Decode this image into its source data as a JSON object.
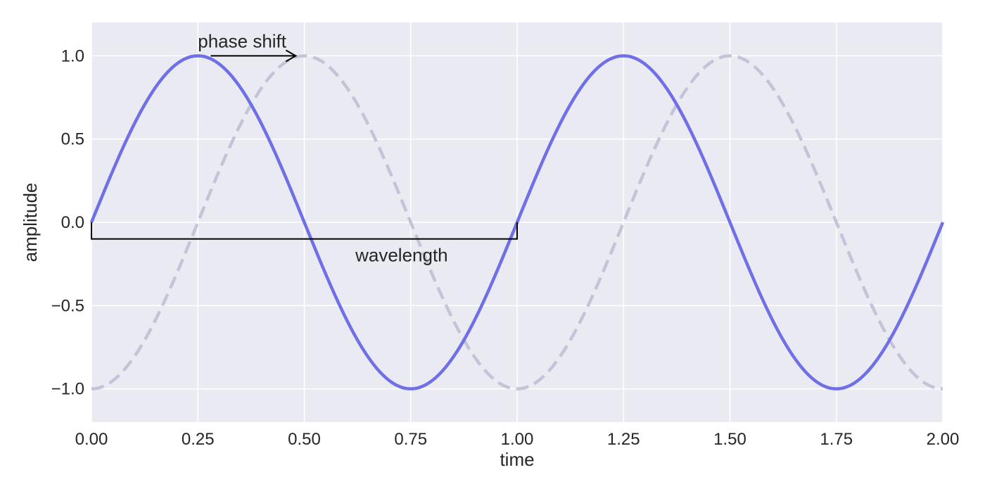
{
  "chart_data": {
    "type": "line",
    "title": "",
    "xlabel": "time",
    "ylabel": "amplitude",
    "xlim": [
      0,
      2
    ],
    "ylim": [
      -1.2,
      1.2
    ],
    "grid": true,
    "legend": "none",
    "background_color": "#EAEAF2",
    "grid_color": "#FFFFFF",
    "xticks": [
      {
        "value": 0.0,
        "label": "0.00"
      },
      {
        "value": 0.25,
        "label": "0.25"
      },
      {
        "value": 0.5,
        "label": "0.50"
      },
      {
        "value": 0.75,
        "label": "0.75"
      },
      {
        "value": 1.0,
        "label": "1.00"
      },
      {
        "value": 1.25,
        "label": "1.25"
      },
      {
        "value": 1.5,
        "label": "1.50"
      },
      {
        "value": 1.75,
        "label": "1.75"
      },
      {
        "value": 2.0,
        "label": "2.00"
      }
    ],
    "yticks": [
      {
        "value": 1.0,
        "label": "1.0"
      },
      {
        "value": 0.5,
        "label": "0.5"
      },
      {
        "value": 0.0,
        "label": "0.0"
      },
      {
        "value": -0.5,
        "label": "−0.5"
      },
      {
        "value": -1.0,
        "label": "−1.0"
      }
    ],
    "series": [
      {
        "style": "solid",
        "color": "#6F6FE8",
        "function": "sin",
        "frequency": 1,
        "phase": 0,
        "x": [
          0,
          0.125,
          0.25,
          0.375,
          0.5,
          0.625,
          0.75,
          0.875,
          1.0,
          1.125,
          1.25,
          1.375,
          1.5,
          1.625,
          1.75,
          1.875,
          2.0
        ],
        "y": [
          0,
          0.707,
          1.0,
          0.707,
          0,
          -0.707,
          -1.0,
          -0.707,
          0,
          0.707,
          1.0,
          0.707,
          0,
          -0.707,
          -1.0,
          -0.707,
          0
        ]
      },
      {
        "style": "dashed",
        "color": "#C4C4D8",
        "function": "sin",
        "frequency": 1,
        "phase": -0.25,
        "x": [
          0,
          0.125,
          0.25,
          0.375,
          0.5,
          0.625,
          0.75,
          0.875,
          1.0,
          1.125,
          1.25,
          1.375,
          1.5,
          1.625,
          1.75,
          1.875,
          2.0
        ],
        "y": [
          -1.0,
          -0.707,
          0,
          0.707,
          1.0,
          0.707,
          0,
          -0.707,
          -1.0,
          -0.707,
          0,
          0.707,
          1.0,
          0.707,
          0,
          -0.707,
          -1.0
        ]
      }
    ],
    "annotations": {
      "phase_shift": {
        "text": "phase shift",
        "arrow_from": [
          0.28,
          1.0
        ],
        "arrow_to": [
          0.48,
          1.0
        ],
        "text_at": [
          0.25,
          1.05
        ]
      },
      "wavelength": {
        "text": "wavelength",
        "bracket_x": [
          0.0,
          1.0
        ],
        "bracket_y": -0.1,
        "bracket_top": 0.0,
        "text_at": [
          0.62,
          -0.2
        ]
      }
    }
  }
}
